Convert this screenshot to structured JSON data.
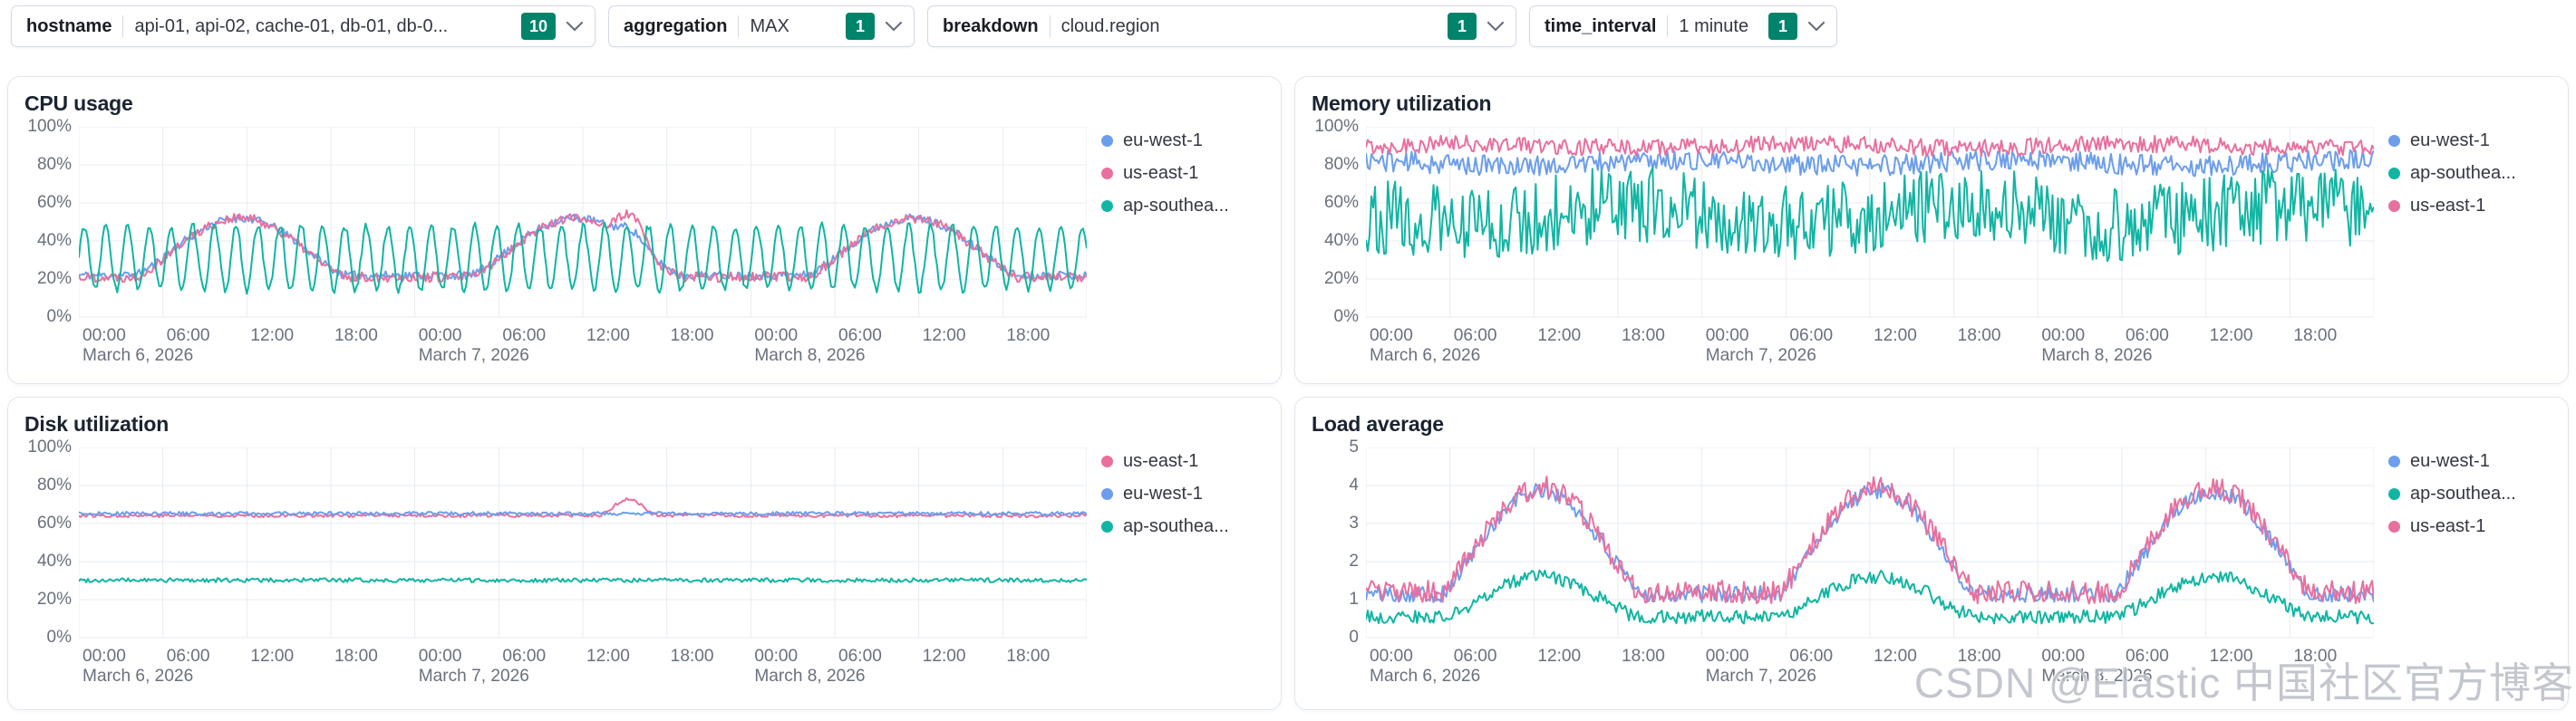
{
  "colors": {
    "blue": "#6c9eeb",
    "pink": "#e8709f",
    "teal": "#12b5a3",
    "badge_green": "#00836b",
    "grid_line": "#e7ebf1",
    "axis_text": "#69707d"
  },
  "filters": [
    {
      "label": "hostname",
      "value": "api-01, api-02, cache-01, db-01, db-0...",
      "count": "10"
    },
    {
      "label": "aggregation",
      "value": "MAX",
      "count": "1"
    },
    {
      "label": "breakdown",
      "value": "cloud.region",
      "count": "1"
    },
    {
      "label": "time_interval",
      "value": "1 minute",
      "count": "1"
    }
  ],
  "watermark": "CSDN @Elastic 中国社区官方博客",
  "x_axis": {
    "span_hours": 72,
    "ticks": [
      {
        "h": 0,
        "t": "00:00",
        "date": "March 6, 2026"
      },
      {
        "h": 6,
        "t": "06:00"
      },
      {
        "h": 12,
        "t": "12:00"
      },
      {
        "h": 18,
        "t": "18:00"
      },
      {
        "h": 24,
        "t": "00:00",
        "date": "March 7, 2026"
      },
      {
        "h": 30,
        "t": "06:00"
      },
      {
        "h": 36,
        "t": "12:00"
      },
      {
        "h": 42,
        "t": "18:00"
      },
      {
        "h": 48,
        "t": "00:00",
        "date": "March 8, 2026"
      },
      {
        "h": 54,
        "t": "06:00"
      },
      {
        "h": 60,
        "t": "12:00"
      },
      {
        "h": 66,
        "t": "18:00"
      }
    ]
  },
  "chart_data": [
    {
      "type": "line",
      "title": "CPU usage",
      "ylim": [
        0,
        100
      ],
      "y_ticks": [
        "100%",
        "80%",
        "60%",
        "40%",
        "20%",
        "0%"
      ],
      "legend_position": "right",
      "grid": true,
      "legend": [
        "eu-west-1",
        "us-east-1",
        "ap-southea..."
      ],
      "series": [
        {
          "name": "eu-west-1",
          "color": "blue",
          "kind": "diurnal",
          "base": 22,
          "amp": 30,
          "day_start": 4,
          "day_end": 19,
          "shape": 0.65,
          "noise": 2.2,
          "seed": 11,
          "bursts": [
            {
              "start": 37.5,
              "end": 41.5,
              "add": 6
            }
          ]
        },
        {
          "name": "us-east-1",
          "color": "pink",
          "kind": "diurnal",
          "base": 21,
          "amp": 31,
          "day_start": 4,
          "day_end": 19,
          "shape": 0.65,
          "noise": 2.6,
          "seed": 22,
          "bursts": [
            {
              "start": 37.5,
              "end": 41.5,
              "add": 14
            }
          ]
        },
        {
          "name": "ap-southea...",
          "color": "teal",
          "kind": "osc",
          "mid": 31,
          "amp": 17,
          "period": 1.55,
          "noise": 2.0,
          "seed": 33
        }
      ]
    },
    {
      "type": "line",
      "title": "Memory utilization",
      "ylim": [
        0,
        100
      ],
      "y_ticks": [
        "100%",
        "80%",
        "60%",
        "40%",
        "20%",
        "0%"
      ],
      "legend_position": "right",
      "grid": true,
      "legend": [
        "eu-west-1",
        "ap-southea...",
        "us-east-1"
      ],
      "series": [
        {
          "name": "eu-west-1",
          "color": "blue",
          "kind": "flat",
          "base": 81,
          "noise": 5.5,
          "slow_amp": 1.5,
          "seed": 44
        },
        {
          "name": "us-east-1",
          "color": "pink",
          "kind": "flat",
          "base": 90,
          "noise": 4.5,
          "slow_amp": 1.0,
          "seed": 55
        },
        {
          "name": "ap-southea...",
          "color": "teal",
          "kind": "flat",
          "base": 54,
          "noise": 20,
          "slow_amp": 5.0,
          "seed": 66
        }
      ]
    },
    {
      "type": "line",
      "title": "Disk utilization",
      "ylim": [
        0,
        100
      ],
      "y_ticks": [
        "100%",
        "80%",
        "60%",
        "40%",
        "20%",
        "0%"
      ],
      "legend_position": "right",
      "grid": true,
      "legend": [
        "us-east-1",
        "eu-west-1",
        "ap-southea..."
      ],
      "series": [
        {
          "name": "us-east-1",
          "color": "pink",
          "kind": "flat",
          "base": 64.2,
          "noise": 0.9,
          "seed": 77,
          "bursts": [
            {
              "start": 37,
              "end": 41.5,
              "add": 8.5
            }
          ]
        },
        {
          "name": "eu-west-1",
          "color": "blue",
          "kind": "flat",
          "base": 65.3,
          "noise": 0.9,
          "seed": 88
        },
        {
          "name": "ap-southea...",
          "color": "teal",
          "kind": "flat",
          "base": 30.2,
          "noise": 1.1,
          "seed": 99
        }
      ]
    },
    {
      "type": "line",
      "title": "Load average",
      "ylim": [
        0,
        5
      ],
      "y_ticks": [
        "5",
        "4",
        "3",
        "2",
        "1",
        "0"
      ],
      "legend_position": "right",
      "grid": true,
      "legend": [
        "eu-west-1",
        "ap-southea...",
        "us-east-1"
      ],
      "series": [
        {
          "name": "eu-west-1",
          "color": "blue",
          "kind": "diurnal",
          "base": 1.15,
          "amp": 2.7,
          "day_start": 5.5,
          "day_end": 19.5,
          "shape": 0.6,
          "noise": 0.22,
          "seed": 101
        },
        {
          "name": "us-east-1",
          "color": "pink",
          "kind": "diurnal",
          "base": 1.2,
          "amp": 2.75,
          "day_start": 5.5,
          "day_end": 19.5,
          "shape": 0.6,
          "noise": 0.3,
          "seed": 102
        },
        {
          "name": "ap-southea...",
          "color": "teal",
          "kind": "diurnal",
          "base": 0.55,
          "amp": 1.05,
          "day_start": 5.5,
          "day_end": 19.5,
          "shape": 0.7,
          "noise": 0.18,
          "seed": 103
        }
      ]
    }
  ]
}
